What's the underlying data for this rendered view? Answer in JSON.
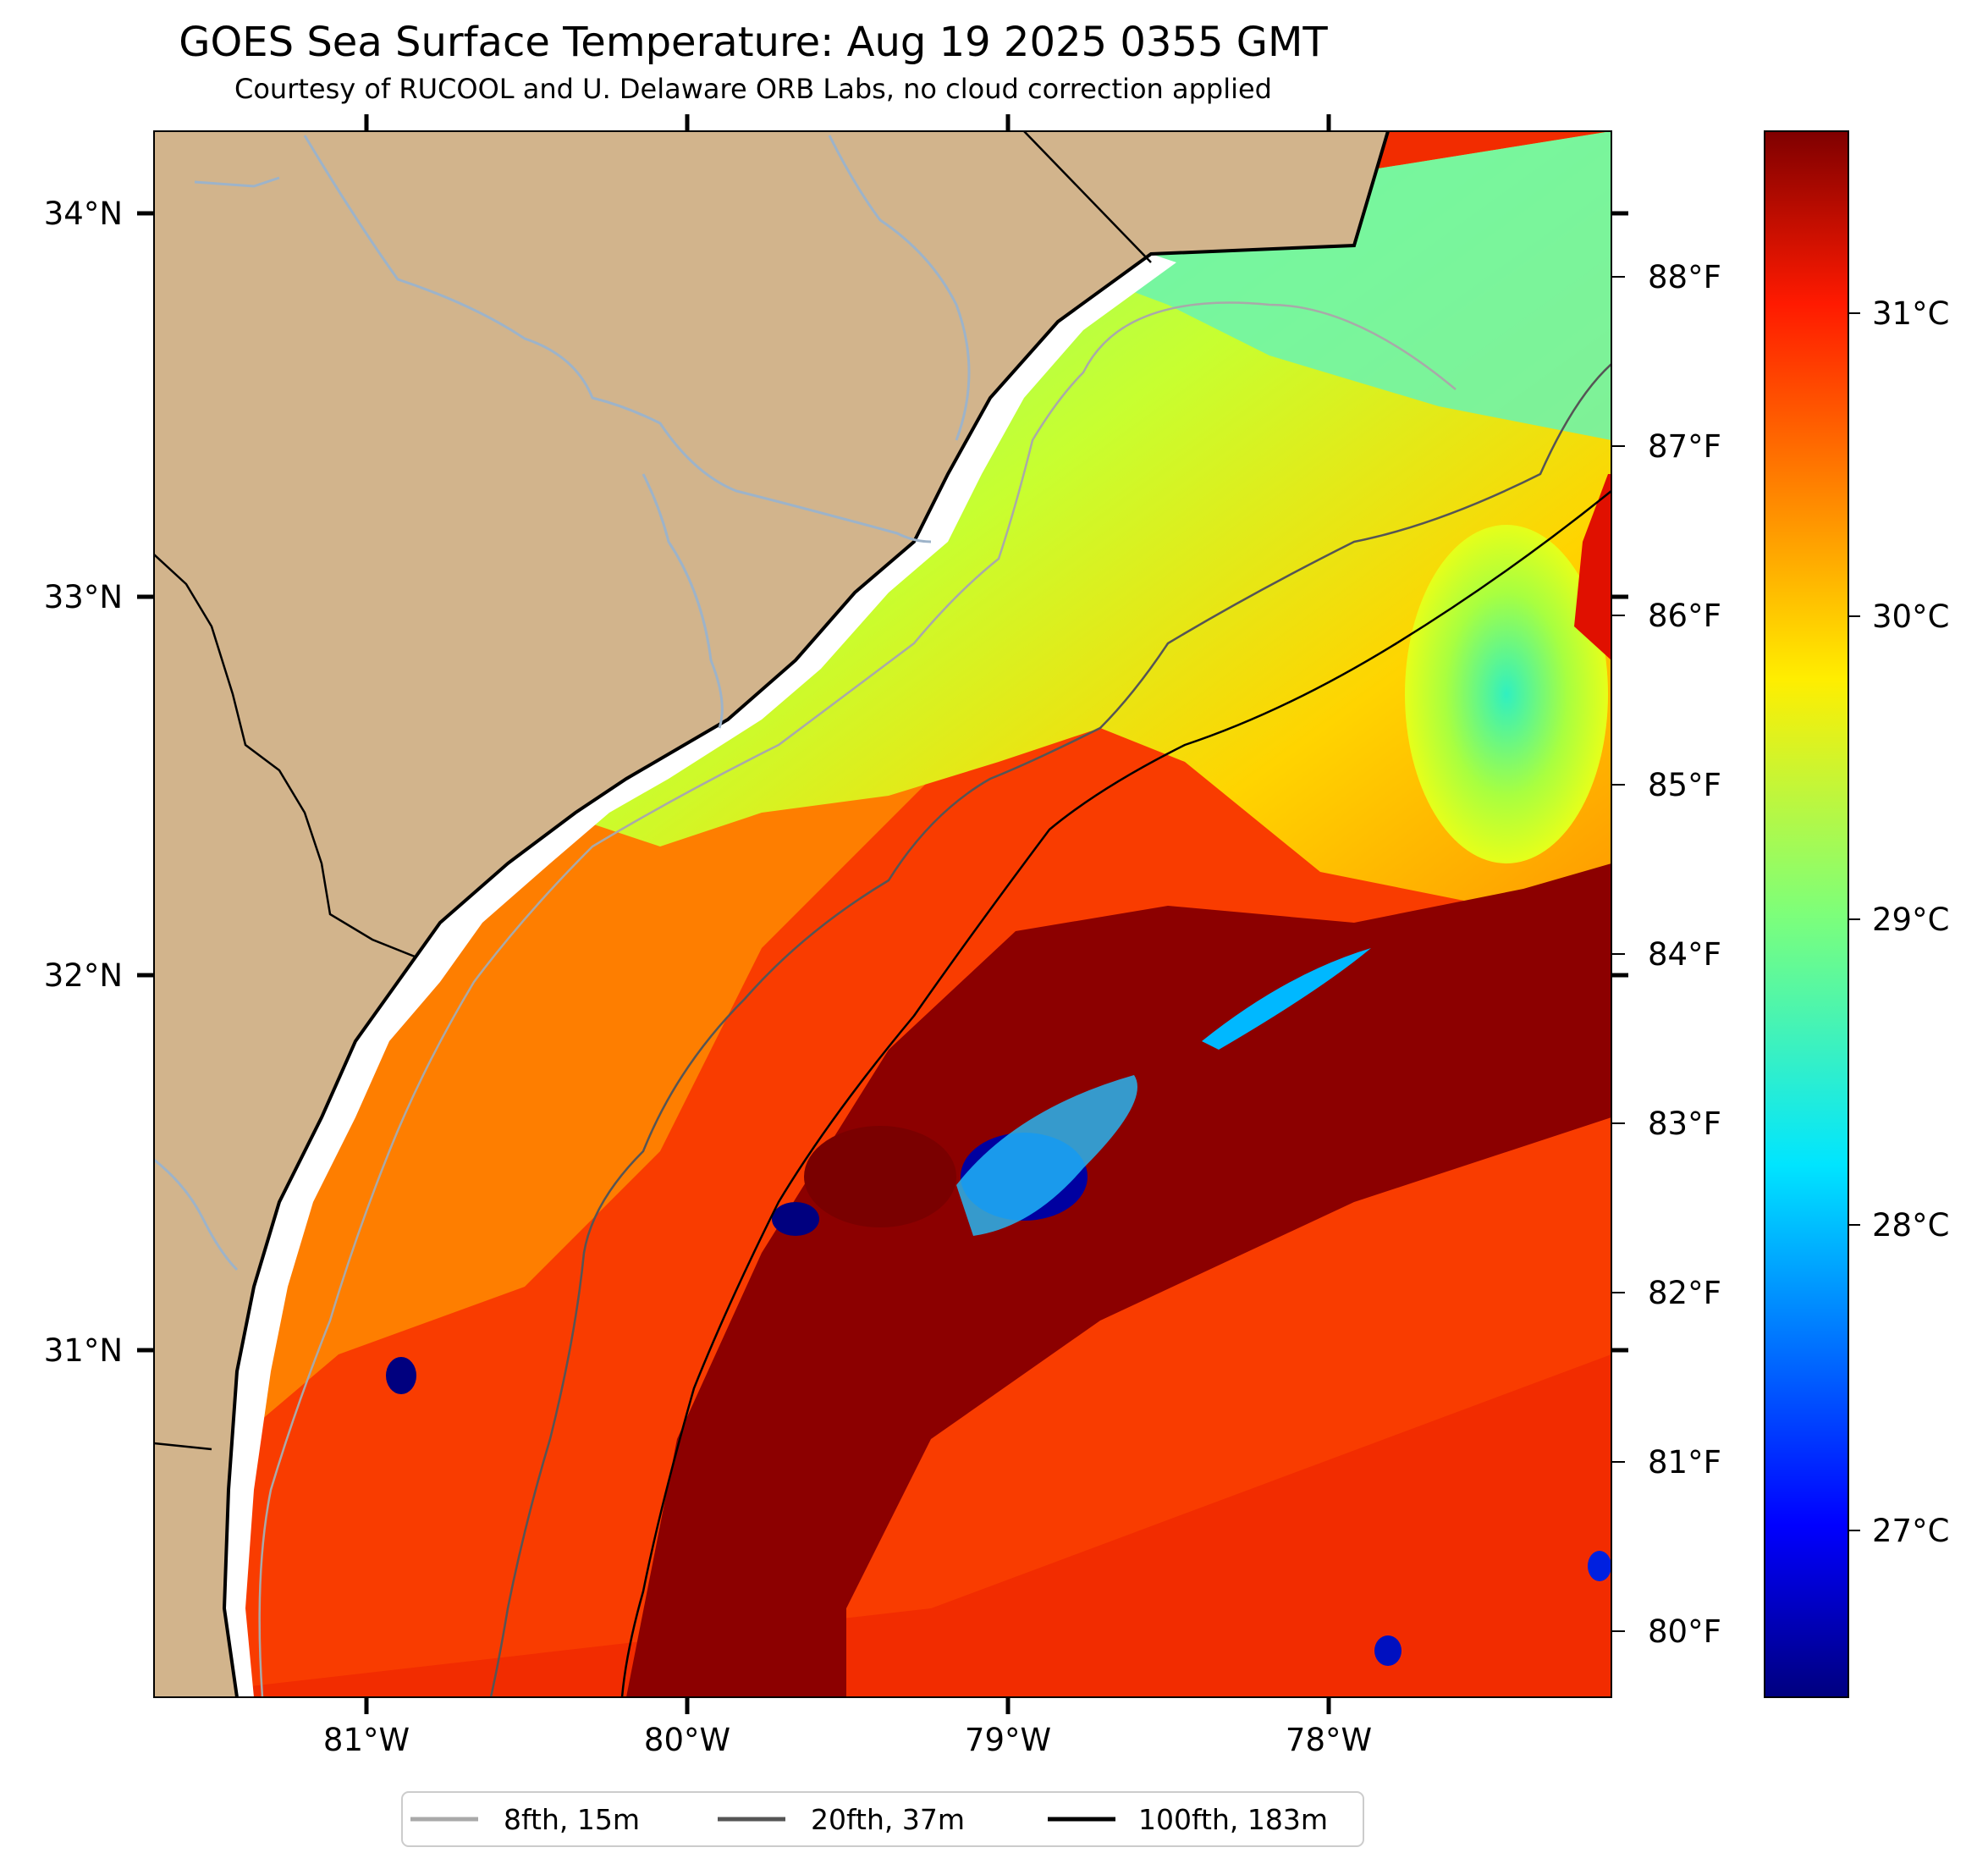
{
  "title": "GOES Sea Surface Temperature: Aug 19 2025 0355 GMT",
  "subtitle": "Courtesy of RUCOOL and U. Delaware ORB Labs, no cloud correction applied",
  "map": {
    "lon_ticks": [
      "81°W",
      "80°W",
      "79°W",
      "78°W"
    ],
    "lat_ticks": [
      "34°N",
      "33°N",
      "32°N",
      "31°N"
    ],
    "fahrenheit_ticks": [
      "88°F",
      "87°F",
      "86°F",
      "85°F",
      "84°F",
      "83°F",
      "82°F",
      "81°F",
      "80°F"
    ],
    "colors": {
      "land": "#d2b48c",
      "water_river": "#9db3c9",
      "coast": "#000000"
    }
  },
  "colorbar": {
    "celsius_ticks": [
      "31°C",
      "30°C",
      "29°C",
      "28°C",
      "27°C"
    ],
    "colormap": "jet"
  },
  "legend": {
    "items": [
      {
        "label": "8fth, 15m",
        "color": "#a9a9a9"
      },
      {
        "label": "20fth, 37m",
        "color": "#555555"
      },
      {
        "label": "100fth, 183m",
        "color": "#000000"
      }
    ]
  }
}
